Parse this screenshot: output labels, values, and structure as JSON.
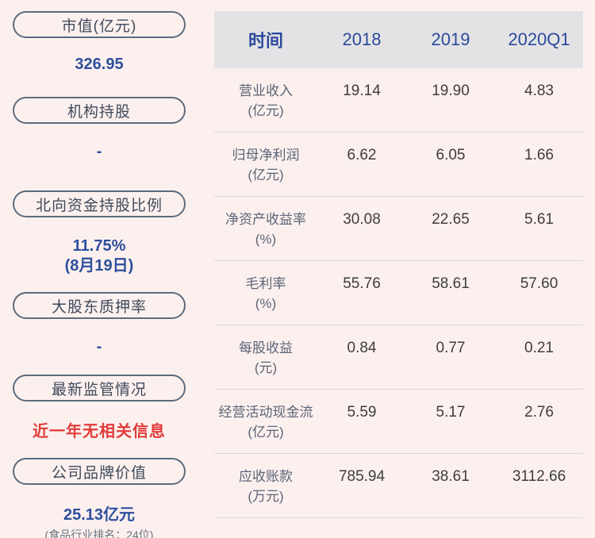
{
  "colors": {
    "page_bg": "#fcf0ee",
    "accent_blue": "#2d4f9e",
    "header_blue": "#2c4a9c",
    "alert_red": "#e23b3b",
    "header_bg": "#e3e3e5",
    "pill_border": "#5d6b7c"
  },
  "sidebar": {
    "items": [
      {
        "label": "市值(亿元)",
        "value": "326.95"
      },
      {
        "label": "机构持股",
        "value": "-"
      },
      {
        "label": "北向资金持股比例",
        "value": "11.75%",
        "sub": "(8月19日)"
      },
      {
        "label": "大股东质押率",
        "value": "-"
      },
      {
        "label": "最新监管情况",
        "value": "近一年无相关信息"
      },
      {
        "label": "公司品牌价值",
        "value": "25.13亿元",
        "note": "(食品行业排名：24位)"
      }
    ]
  },
  "table": {
    "header": {
      "time_label": "时间",
      "years": [
        "2018",
        "2019",
        "2020Q1"
      ]
    },
    "rows": [
      {
        "name": "营业收入",
        "unit": "(亿元)",
        "values": [
          "19.14",
          "19.90",
          "4.83"
        ]
      },
      {
        "name": "归母净利润",
        "unit": "(亿元)",
        "values": [
          "6.62",
          "6.05",
          "1.66"
        ]
      },
      {
        "name": "净资产收益率",
        "unit": "(%)",
        "values": [
          "30.08",
          "22.65",
          "5.61"
        ]
      },
      {
        "name": "毛利率",
        "unit": "(%)",
        "values": [
          "55.76",
          "58.61",
          "57.60"
        ]
      },
      {
        "name": "每股收益",
        "unit": "(元)",
        "values": [
          "0.84",
          "0.77",
          "0.21"
        ]
      },
      {
        "name": "经营活动现金流",
        "unit": "(亿元)",
        "values": [
          "5.59",
          "5.17",
          "2.76"
        ]
      },
      {
        "name": "应收账款",
        "unit": "(万元)",
        "values": [
          "785.94",
          "38.61",
          "3112.66"
        ]
      }
    ]
  }
}
